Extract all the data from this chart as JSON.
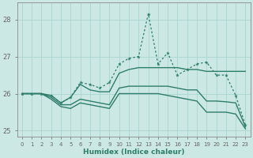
{
  "xlabel": "Humidex (Indice chaleur)",
  "x": [
    0,
    1,
    2,
    3,
    4,
    5,
    6,
    7,
    8,
    9,
    10,
    11,
    12,
    13,
    14,
    15,
    16,
    17,
    18,
    19,
    20,
    21,
    22,
    23
  ],
  "line_spike": [
    26.0,
    26.0,
    26.0,
    25.95,
    25.75,
    25.9,
    26.3,
    26.25,
    26.15,
    26.3,
    26.8,
    26.95,
    27.0,
    28.15,
    26.8,
    27.1,
    26.5,
    26.65,
    26.8,
    26.85,
    26.5,
    26.5,
    25.95,
    25.15
  ],
  "line_mid1": [
    26.0,
    26.0,
    26.0,
    25.95,
    25.75,
    25.9,
    26.25,
    26.1,
    26.05,
    26.05,
    26.55,
    26.65,
    26.7,
    26.7,
    26.7,
    26.7,
    26.7,
    26.65,
    26.65,
    26.6,
    26.6,
    26.6,
    26.6,
    26.6
  ],
  "line_low1": [
    26.0,
    26.0,
    26.0,
    25.9,
    25.7,
    25.7,
    25.85,
    25.8,
    25.75,
    25.7,
    26.15,
    26.2,
    26.2,
    26.2,
    26.2,
    26.2,
    26.15,
    26.1,
    26.1,
    25.8,
    25.8,
    25.78,
    25.75,
    25.1
  ],
  "line_low2": [
    26.0,
    26.0,
    26.0,
    25.85,
    25.65,
    25.6,
    25.75,
    25.7,
    25.65,
    25.6,
    26.0,
    26.0,
    26.0,
    26.0,
    26.0,
    25.95,
    25.9,
    25.85,
    25.8,
    25.5,
    25.5,
    25.5,
    25.45,
    25.05
  ],
  "line_color": "#2e7d6b",
  "bg_color": "#cce8e4",
  "grid_color": "#aad4d0",
  "ylim": [
    24.85,
    28.45
  ],
  "yticks": [
    25,
    26,
    27,
    28
  ],
  "xticks": [
    0,
    1,
    2,
    3,
    4,
    5,
    6,
    7,
    8,
    9,
    10,
    11,
    12,
    13,
    14,
    15,
    16,
    17,
    18,
    19,
    20,
    21,
    22,
    23
  ]
}
